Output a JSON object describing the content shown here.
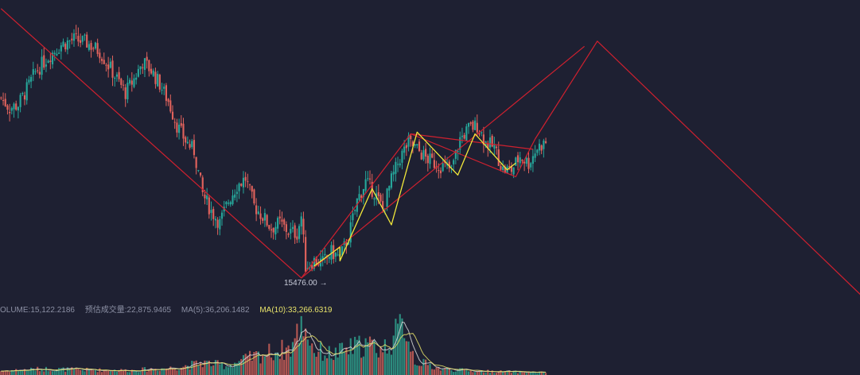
{
  "chart_data": {
    "type": "candlestick",
    "title": "",
    "xlabel": "",
    "ylabel": "",
    "grid": false,
    "colors": {
      "background": "#1e2032",
      "up": "#26a69a",
      "down": "#e0625c",
      "volume_up": "#2c8c7e",
      "volume_down": "#b25652",
      "ma5_volume": "#d8d8d8",
      "ma10_volume": "#e8e36a",
      "red_pattern": "#d0202f",
      "yellow_pattern": "#f2e83a"
    },
    "price_annotation": {
      "label": "15476.00",
      "arrow": "→",
      "value": 15476
    },
    "price_trace": [
      {
        "i": 0,
        "v": 25800
      },
      {
        "i": 4,
        "v": 25200
      },
      {
        "i": 8,
        "v": 25400
      },
      {
        "i": 12,
        "v": 26300
      },
      {
        "i": 16,
        "v": 27300
      },
      {
        "i": 22,
        "v": 28200
      },
      {
        "i": 28,
        "v": 28900
      },
      {
        "i": 34,
        "v": 29200
      },
      {
        "i": 40,
        "v": 29000
      },
      {
        "i": 46,
        "v": 28500
      },
      {
        "i": 50,
        "v": 27700
      },
      {
        "i": 54,
        "v": 26900
      },
      {
        "i": 58,
        "v": 26100
      },
      {
        "i": 62,
        "v": 26900
      },
      {
        "i": 66,
        "v": 27900
      },
      {
        "i": 70,
        "v": 27400
      },
      {
        "i": 74,
        "v": 26600
      },
      {
        "i": 78,
        "v": 25600
      },
      {
        "i": 82,
        "v": 24200
      },
      {
        "i": 86,
        "v": 23300
      },
      {
        "i": 90,
        "v": 22700
      },
      {
        "i": 94,
        "v": 20200
      },
      {
        "i": 98,
        "v": 19200
      },
      {
        "i": 102,
        "v": 18500
      },
      {
        "i": 106,
        "v": 19800
      },
      {
        "i": 110,
        "v": 20700
      },
      {
        "i": 114,
        "v": 21100
      },
      {
        "i": 118,
        "v": 19500
      },
      {
        "i": 122,
        "v": 18900
      },
      {
        "i": 126,
        "v": 18200
      },
      {
        "i": 130,
        "v": 18500
      },
      {
        "i": 134,
        "v": 18000
      },
      {
        "i": 138,
        "v": 17900
      },
      {
        "i": 140,
        "v": 18900
      },
      {
        "i": 142,
        "v": 16000
      },
      {
        "i": 146,
        "v": 16300
      },
      {
        "i": 150,
        "v": 16200
      },
      {
        "i": 154,
        "v": 16800
      },
      {
        "i": 158,
        "v": 16500
      },
      {
        "i": 162,
        "v": 17700
      },
      {
        "i": 166,
        "v": 19800
      },
      {
        "i": 170,
        "v": 20900
      },
      {
        "i": 174,
        "v": 20300
      },
      {
        "i": 178,
        "v": 19300
      },
      {
        "i": 182,
        "v": 21000
      },
      {
        "i": 186,
        "v": 22300
      },
      {
        "i": 190,
        "v": 23200
      },
      {
        "i": 194,
        "v": 22800
      },
      {
        "i": 198,
        "v": 22300
      },
      {
        "i": 202,
        "v": 22000
      },
      {
        "i": 206,
        "v": 21800
      },
      {
        "i": 210,
        "v": 21600
      },
      {
        "i": 214,
        "v": 23400
      },
      {
        "i": 218,
        "v": 24000
      },
      {
        "i": 222,
        "v": 24200
      },
      {
        "i": 226,
        "v": 23200
      },
      {
        "i": 230,
        "v": 22900
      },
      {
        "i": 234,
        "v": 21600
      },
      {
        "i": 238,
        "v": 21600
      },
      {
        "i": 242,
        "v": 22400
      },
      {
        "i": 246,
        "v": 22000
      },
      {
        "i": 250,
        "v": 22900
      },
      {
        "i": 254,
        "v": 23200
      }
    ],
    "red_pattern": [
      {
        "i": 0,
        "v": 31000
      },
      {
        "i": 140,
        "v": 15300
      },
      {
        "i": 191,
        "v": 23700
      },
      {
        "i": 240,
        "v": 21200
      },
      {
        "i": 249,
        "v": 23400
      }
    ],
    "red_projection": [
      {
        "i": 249,
        "v": 23400
      },
      {
        "i": 278,
        "v": 29100
      },
      {
        "i": 401,
        "v": 14300
      }
    ],
    "red_channel_lower": [
      {
        "i": 140,
        "v": 15300
      },
      {
        "i": 272,
        "v": 28800
      }
    ],
    "red_channel_upper": [
      {
        "i": 191,
        "v": 23700
      },
      {
        "i": 248,
        "v": 22800
      }
    ],
    "yellow_pattern": [
      {
        "i": 146,
        "v": 16000
      },
      {
        "i": 158,
        "v": 17100
      },
      {
        "i": 158,
        "v": 16300
      },
      {
        "i": 173,
        "v": 20500
      },
      {
        "i": 182,
        "v": 18400
      },
      {
        "i": 194,
        "v": 23800
      },
      {
        "i": 213,
        "v": 21300
      },
      {
        "i": 221,
        "v": 23700
      },
      {
        "i": 236,
        "v": 21600
      },
      {
        "i": 240,
        "v": 22000
      }
    ],
    "price_axis": {
      "ylim": [
        14000,
        31500
      ],
      "bars": 401
    },
    "volume_legend": [
      {
        "key": "VOLUME",
        "label": "OLUME:15,122.2186"
      },
      {
        "key": "estimate",
        "label": "预估成交量:22,875.9465"
      },
      {
        "key": "ma5",
        "label": "MA(5):36,206.1482"
      },
      {
        "key": "ma10",
        "label": "MA(10):33,266.6319"
      }
    ],
    "volume_values": [
      36206.1482,
      33266.6319,
      15122.2186,
      22875.9465
    ],
    "volume_profile": [
      {
        "i": 0,
        "v": 4000
      },
      {
        "i": 20,
        "v": 6000
      },
      {
        "i": 40,
        "v": 5000
      },
      {
        "i": 60,
        "v": 4500
      },
      {
        "i": 80,
        "v": 7000
      },
      {
        "i": 95,
        "v": 12000
      },
      {
        "i": 105,
        "v": 9000
      },
      {
        "i": 115,
        "v": 16000
      },
      {
        "i": 125,
        "v": 22000
      },
      {
        "i": 135,
        "v": 26000
      },
      {
        "i": 141,
        "v": 52000
      },
      {
        "i": 146,
        "v": 24000
      },
      {
        "i": 155,
        "v": 20000
      },
      {
        "i": 163,
        "v": 26000
      },
      {
        "i": 170,
        "v": 30000
      },
      {
        "i": 178,
        "v": 25000
      },
      {
        "i": 185,
        "v": 41000
      },
      {
        "i": 188,
        "v": 52000
      },
      {
        "i": 193,
        "v": 14000
      },
      {
        "i": 205,
        "v": 6000
      },
      {
        "i": 220,
        "v": 4000
      },
      {
        "i": 240,
        "v": 3000
      },
      {
        "i": 254,
        "v": 2500
      }
    ],
    "volume_axis": {
      "ylim": [
        0,
        60000
      ]
    }
  }
}
